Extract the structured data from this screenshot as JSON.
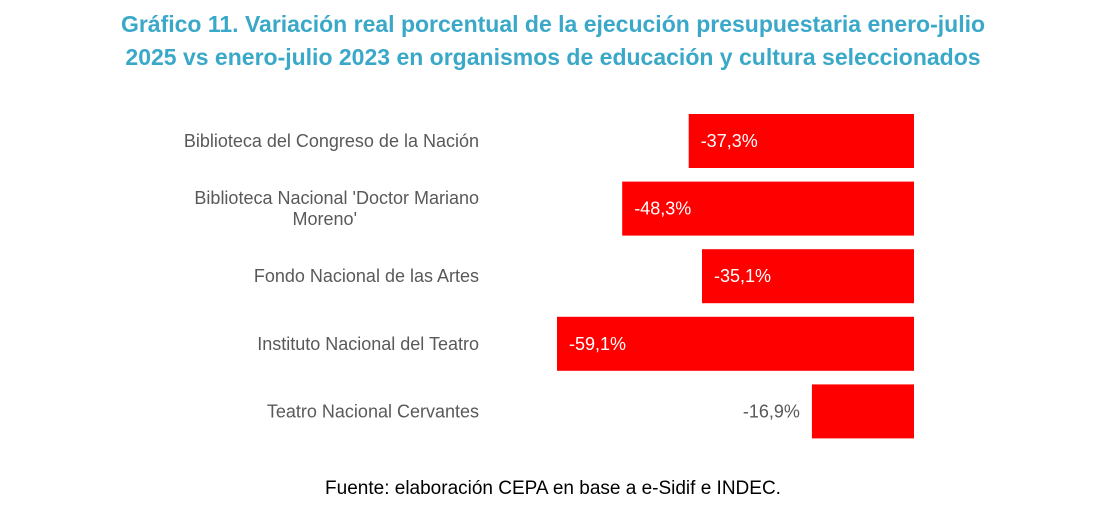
{
  "title_lines": [
    "Gráfico 11. Variación real porcentual de la ejecución presupuestaria enero-julio",
    "2025 vs enero-julio 2023 en organismos de educación y cultura seleccionados"
  ],
  "source": "Fuente: elaboración CEPA en base a e-Sidif e INDEC.",
  "colors": {
    "bar": "#ff0000",
    "title": "#3aa8c8",
    "label": "#595959"
  },
  "chart_data": {
    "type": "bar",
    "orientation": "horizontal",
    "categories": [
      [
        "Biblioteca del Congreso de la Nación"
      ],
      [
        "Biblioteca Nacional 'Doctor Mariano",
        "Moreno'"
      ],
      [
        "Fondo Nacional de las Artes"
      ],
      [
        "Instituto Nacional del Teatro"
      ],
      [
        "Teatro Nacional Cervantes"
      ]
    ],
    "values": [
      -37.3,
      -48.3,
      -35.1,
      -59.1,
      -16.9
    ],
    "data_labels": [
      "-37,3%",
      "-48,3%",
      "-35,1%",
      "-59,1%",
      "-16,9%"
    ],
    "xlim": [
      -60,
      0
    ],
    "unit": "%",
    "title": "Gráfico 11. Variación real porcentual de la ejecución presupuestaria enero-julio 2025 vs enero-julio 2023 en organismos de educación y cultura seleccionados"
  }
}
